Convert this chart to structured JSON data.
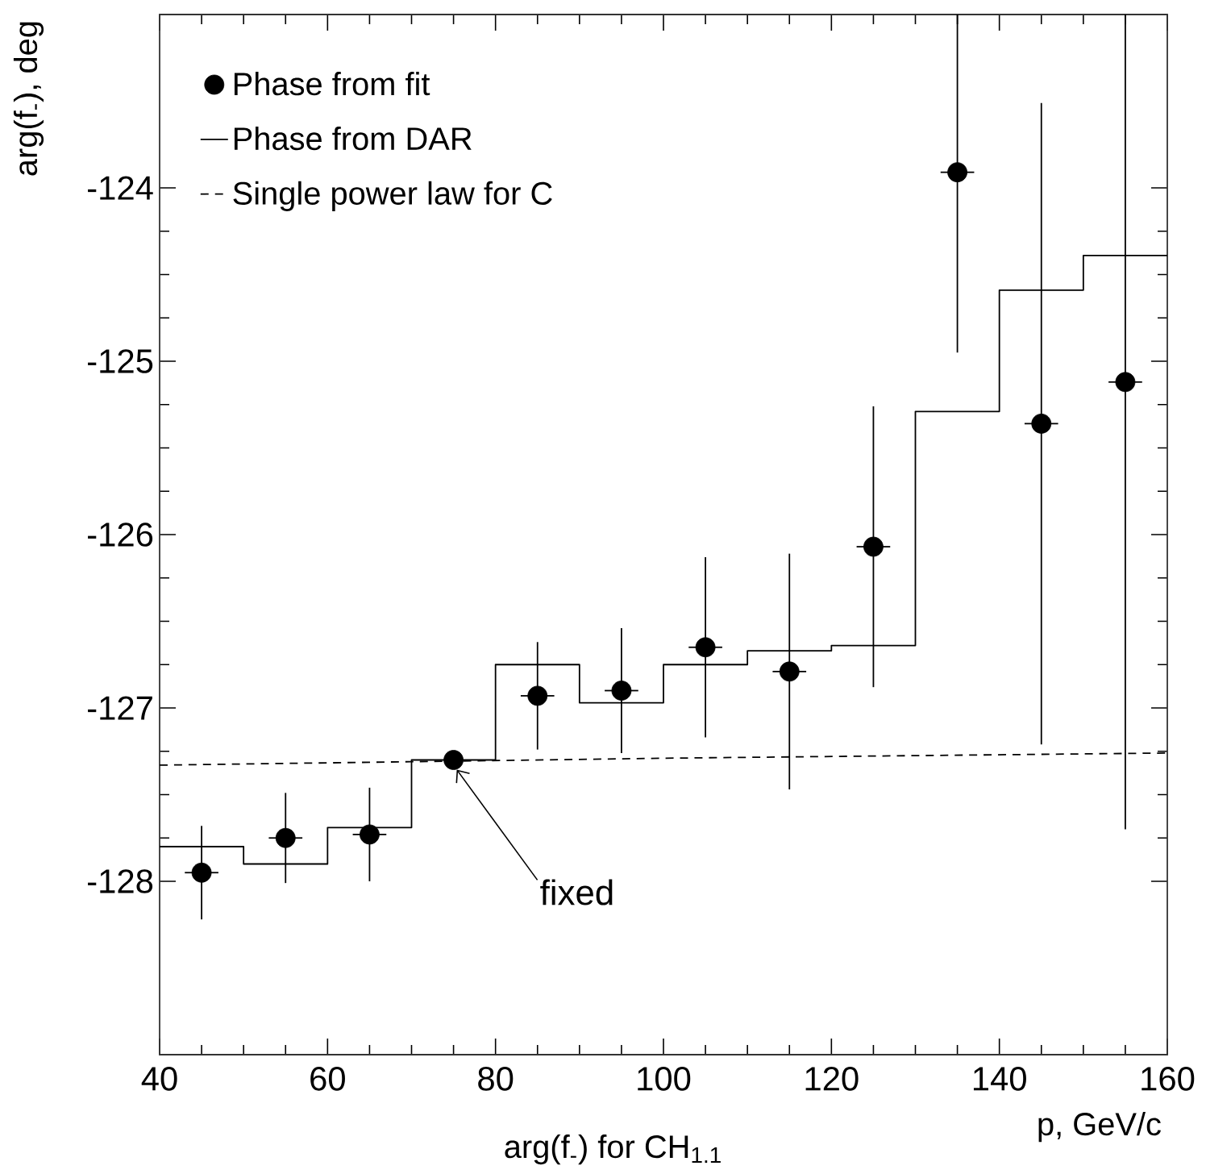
{
  "chart_data": {
    "type": "scatter",
    "xlabel": "p,  GeV/c",
    "ylabel": "arg(f$_{-}$), deg",
    "xlim": [
      40,
      160
    ],
    "xticks": [
      40,
      60,
      80,
      100,
      120,
      140,
      160
    ],
    "ylim": [
      -129,
      -123
    ],
    "yticks": [
      -128,
      -127,
      -126,
      -125,
      -124
    ],
    "legend": "top left",
    "series": [
      {
        "name": "Phase from fit",
        "color": "#000000",
        "marker": "circle",
        "x": [
          45,
          55,
          65,
          75,
          85,
          95,
          105,
          115,
          125,
          135,
          145,
          155
        ],
        "values": [
          -127.95,
          -127.75,
          -127.73,
          -127.3,
          -126.93,
          -126.9,
          -126.65,
          -126.79,
          -126.07,
          -123.91,
          -125.36,
          -125.12
        ],
        "errors": [
          0.27,
          0.26,
          0.27,
          null,
          0.31,
          0.36,
          0.52,
          0.68,
          0.81,
          [
            -124.95,
            -123.0
          ],
          1.85,
          [
            -127.7,
            -123.0
          ]
        ],
        "xerrors": [
          2,
          2,
          2,
          null,
          2,
          2,
          2,
          2,
          2,
          2,
          2,
          2
        ]
      },
      {
        "name": "Phase from DAR",
        "type": "step",
        "color": "#000000",
        "line_style": "solid",
        "x": [
          40,
          50,
          60,
          70,
          80,
          90,
          100,
          110,
          120,
          130,
          140,
          150,
          160
        ],
        "values": [
          -127.8,
          -127.9,
          -127.69,
          -127.3,
          -126.75,
          -126.97,
          -126.75,
          -126.67,
          -126.64,
          -125.29,
          -124.59,
          -124.39,
          -124.39
        ]
      },
      {
        "name": "Single power law for C",
        "type": "line",
        "color": "#000000",
        "line_style": "dashed",
        "x": [
          40,
          100,
          160
        ],
        "values": [
          -127.33,
          -127.29,
          -127.26
        ]
      }
    ],
    "annotations": [
      {
        "text": "fixed",
        "x": 75,
        "y": -127.3
      },
      "arg(f$_{-}$) for CH$_{1.1}$"
    ]
  }
}
